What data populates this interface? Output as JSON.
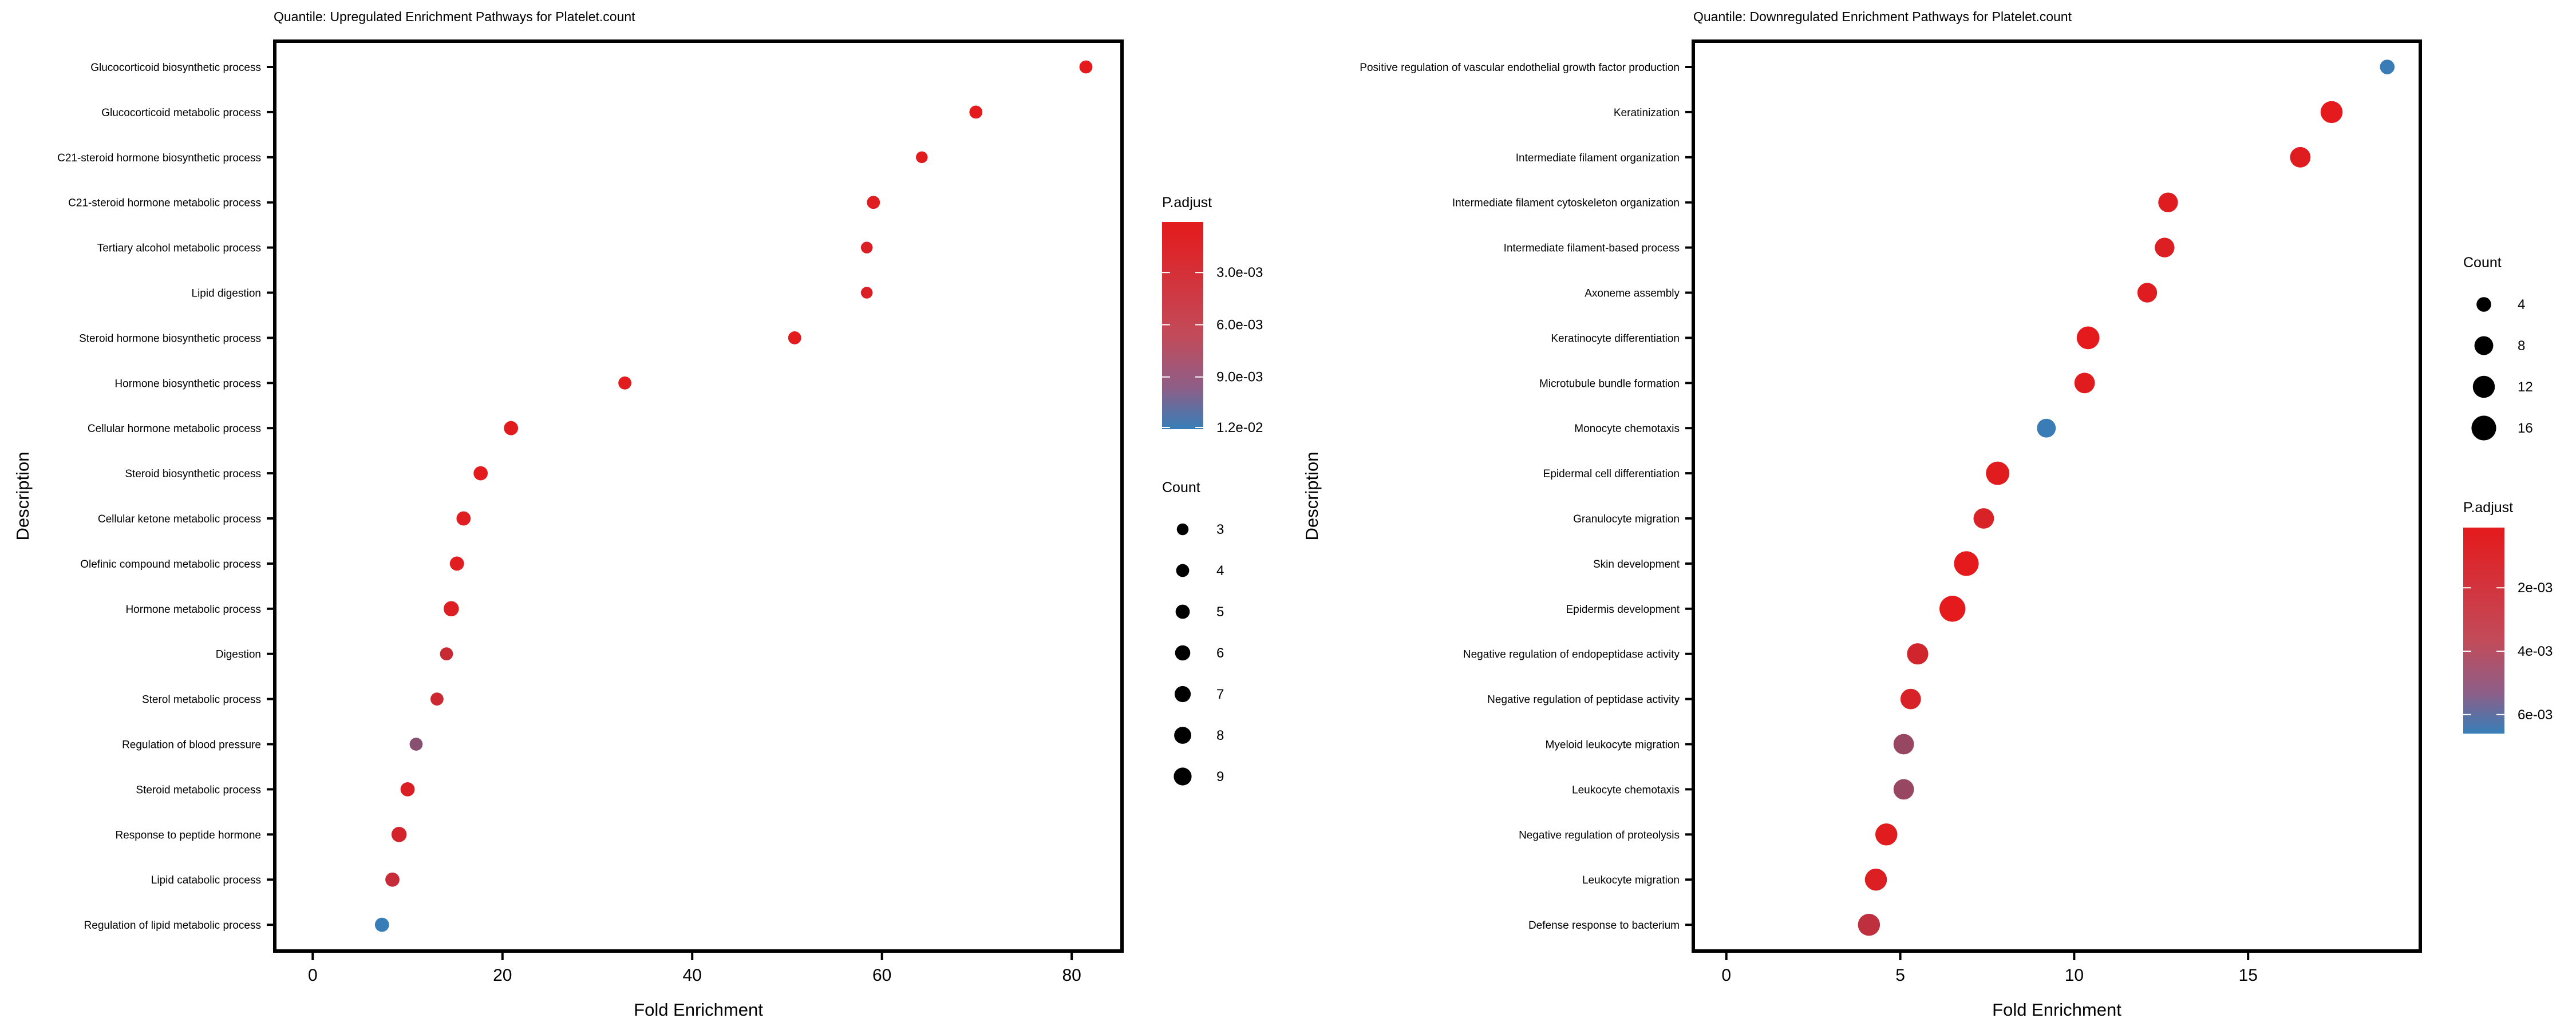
{
  "chart_data": [
    {
      "type": "scatter",
      "title": "Quantile: Upregulated Enrichment Pathways for Platelet.count",
      "xlabel": "Fold Enrichment",
      "ylabel": "Description",
      "xlim": [
        -4,
        85.3
      ],
      "xticks": [
        0,
        20,
        40,
        60,
        80
      ],
      "grid": false,
      "categories": [
        "Glucocorticoid biosynthetic process",
        "Glucocorticoid metabolic process",
        "C21-steroid hormone biosynthetic process",
        "C21-steroid hormone metabolic process",
        "Tertiary alcohol metabolic process",
        "Lipid digestion",
        "Steroid hormone biosynthetic process",
        "Hormone biosynthetic process",
        "Cellular hormone metabolic process",
        "Steroid biosynthetic process",
        "Cellular ketone metabolic process",
        "Olefinic compound metabolic process",
        "Hormone metabolic process",
        "Digestion",
        "Sterol metabolic process",
        "Regulation of blood pressure",
        "Steroid metabolic process",
        "Response to peptide hormone",
        "Lipid catabolic process",
        "Regulation of lipid metabolic process"
      ],
      "fold_enrichment": [
        81.5,
        69.9,
        64.2,
        59.1,
        58.4,
        58.4,
        50.8,
        32.9,
        20.9,
        17.7,
        15.9,
        15.2,
        14.6,
        14.1,
        13.1,
        10.9,
        10.0,
        9.1,
        8.4,
        7.3
      ],
      "count": [
        4,
        4,
        3,
        4,
        3,
        3,
        4,
        4,
        5,
        5,
        5,
        5,
        6,
        4,
        4,
        4,
        5,
        6,
        5,
        5
      ],
      "p_adjust": [
        0.0001,
        0.0002,
        0.0003,
        0.0004,
        0.0008,
        0.0008,
        0.0002,
        0.0003,
        0.0003,
        0.0002,
        0.0004,
        0.0004,
        0.0006,
        0.002,
        0.0018,
        0.0065,
        0.0008,
        0.0013,
        0.0022,
        0.012
      ],
      "color_legend": {
        "title": "P.adjust",
        "min": 0.0001,
        "max": 0.012,
        "labels": [
          "3.0e-03",
          "6.0e-03",
          "9.0e-03",
          "1.2e-02"
        ],
        "values": [
          0.003,
          0.006,
          0.009,
          0.012
        ]
      },
      "size_legend": {
        "title": "Count",
        "labels": [
          "3",
          "4",
          "5",
          "6",
          "7",
          "8",
          "9"
        ],
        "values": [
          3,
          4,
          5,
          6,
          7,
          8,
          9
        ]
      },
      "colors": {
        "low": "#e41a1c",
        "high": "#377eb8"
      }
    },
    {
      "type": "scatter",
      "title": "Quantile: Downregulated Enrichment Pathways for Platelet.count",
      "xlabel": "Fold Enrichment",
      "ylabel": "Description",
      "xlim": [
        -0.95,
        19.95
      ],
      "xticks": [
        0,
        5,
        10,
        15
      ],
      "grid": false,
      "categories": [
        "Positive regulation of vascular endothelial growth factor production",
        "Keratinization",
        "Intermediate filament organization",
        "Intermediate filament cytoskeleton organization",
        "Intermediate filament-based process",
        "Axoneme assembly",
        "Keratinocyte differentiation",
        "Microtubule bundle formation",
        "Monocyte chemotaxis",
        "Epidermal cell differentiation",
        "Granulocyte migration",
        "Skin development",
        "Epidermis development",
        "Negative regulation of endopeptidase activity",
        "Negative regulation of peptidase activity",
        "Myeloid leukocyte migration",
        "Leukocyte chemotaxis",
        "Negative regulation of proteolysis",
        "Leukocyte migration",
        "Defense response to bacterium"
      ],
      "fold_enrichment": [
        19.0,
        17.4,
        16.5,
        12.7,
        12.6,
        12.1,
        10.4,
        10.3,
        9.2,
        7.8,
        7.4,
        6.9,
        6.5,
        5.5,
        5.3,
        5.1,
        5.1,
        4.6,
        4.3,
        4.1
      ],
      "count": [
        4,
        12,
        10,
        9,
        9,
        9,
        13,
        10,
        8,
        14,
        10,
        16,
        18,
        11,
        10,
        10,
        10,
        12,
        12,
        12
      ],
      "p_adjust": [
        0.0065,
        0.0001,
        0.0003,
        0.0003,
        0.0004,
        0.0003,
        0.0001,
        0.0002,
        0.0065,
        0.0002,
        0.0006,
        0.0001,
        0.0001,
        0.0008,
        0.0006,
        0.003,
        0.003,
        0.0002,
        0.0004,
        0.0015
      ],
      "color_legend": {
        "title": "P.adjust",
        "min": 0.0001,
        "max": 0.0066,
        "labels": [
          "2e-03",
          "4e-03",
          "6e-03"
        ],
        "values": [
          0.002,
          0.004,
          0.006
        ]
      },
      "size_legend": {
        "title": "Count",
        "labels": [
          "4",
          "8",
          "12",
          "16"
        ],
        "values": [
          4,
          8,
          12,
          16
        ]
      },
      "colors": {
        "low": "#e41a1c",
        "high": "#377eb8"
      }
    }
  ]
}
